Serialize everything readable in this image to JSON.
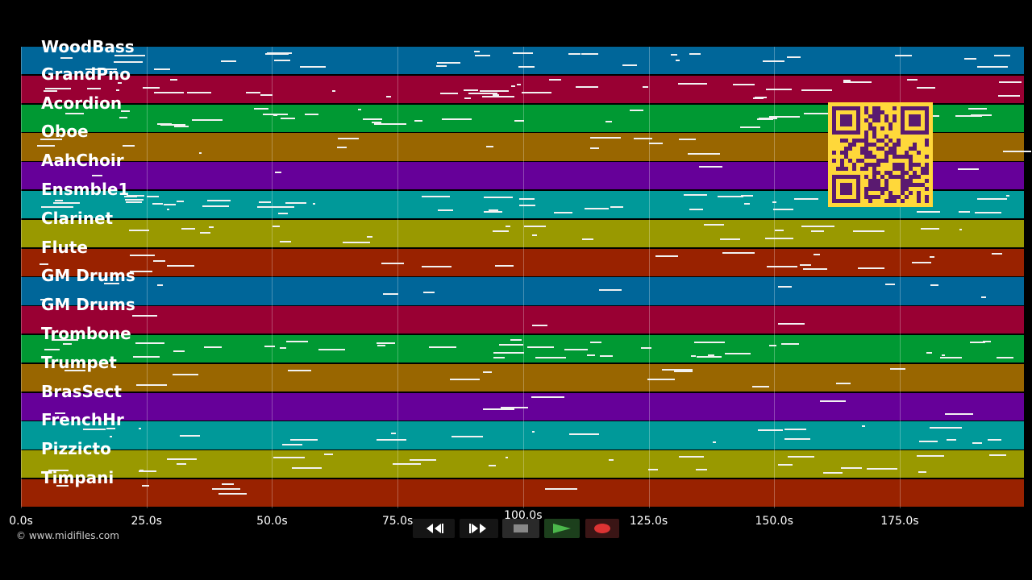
{
  "tracks": [
    {
      "name": "WoodBass",
      "color": "#006699"
    },
    {
      "name": "GrandPno",
      "color": "#990033"
    },
    {
      "name": "Acordion",
      "color": "#009933"
    },
    {
      "name": "Oboe",
      "color": "#996600"
    },
    {
      "name": "AahChoir",
      "color": "#660099"
    },
    {
      "name": "Ensmble1",
      "color": "#009999"
    },
    {
      "name": "Clarinet",
      "color": "#999900"
    },
    {
      "name": "Flute",
      "color": "#992200"
    },
    {
      "name": "GM Drums",
      "color": "#006699"
    },
    {
      "name": "GM Drums",
      "color": "#990033"
    },
    {
      "name": "Trombone",
      "color": "#009933"
    },
    {
      "name": "Trumpet",
      "color": "#996600"
    },
    {
      "name": "BrasSect",
      "color": "#660099"
    },
    {
      "name": "FrenchHr",
      "color": "#009999"
    },
    {
      "name": "Pizzicto",
      "color": "#999900"
    },
    {
      "name": "Timpani",
      "color": "#992200"
    }
  ],
  "timeline": {
    "ticks": [
      "0.0s",
      "25.0s",
      "50.0s",
      "75.0s",
      "100.0s",
      "125.0s",
      "150.0s",
      "175.0s"
    ]
  },
  "footer": {
    "copyright": "© www.midifiles.com"
  },
  "transport": {
    "rewind_icon": "rewind-icon",
    "fast_forward_icon": "fast-forward-icon",
    "stop_icon": "stop-icon",
    "play_icon": "play-icon",
    "record_icon": "record-icon"
  },
  "qr_code": {
    "icon": "qr-code",
    "color": "#ffd83a",
    "ink": "#5a1a70"
  }
}
